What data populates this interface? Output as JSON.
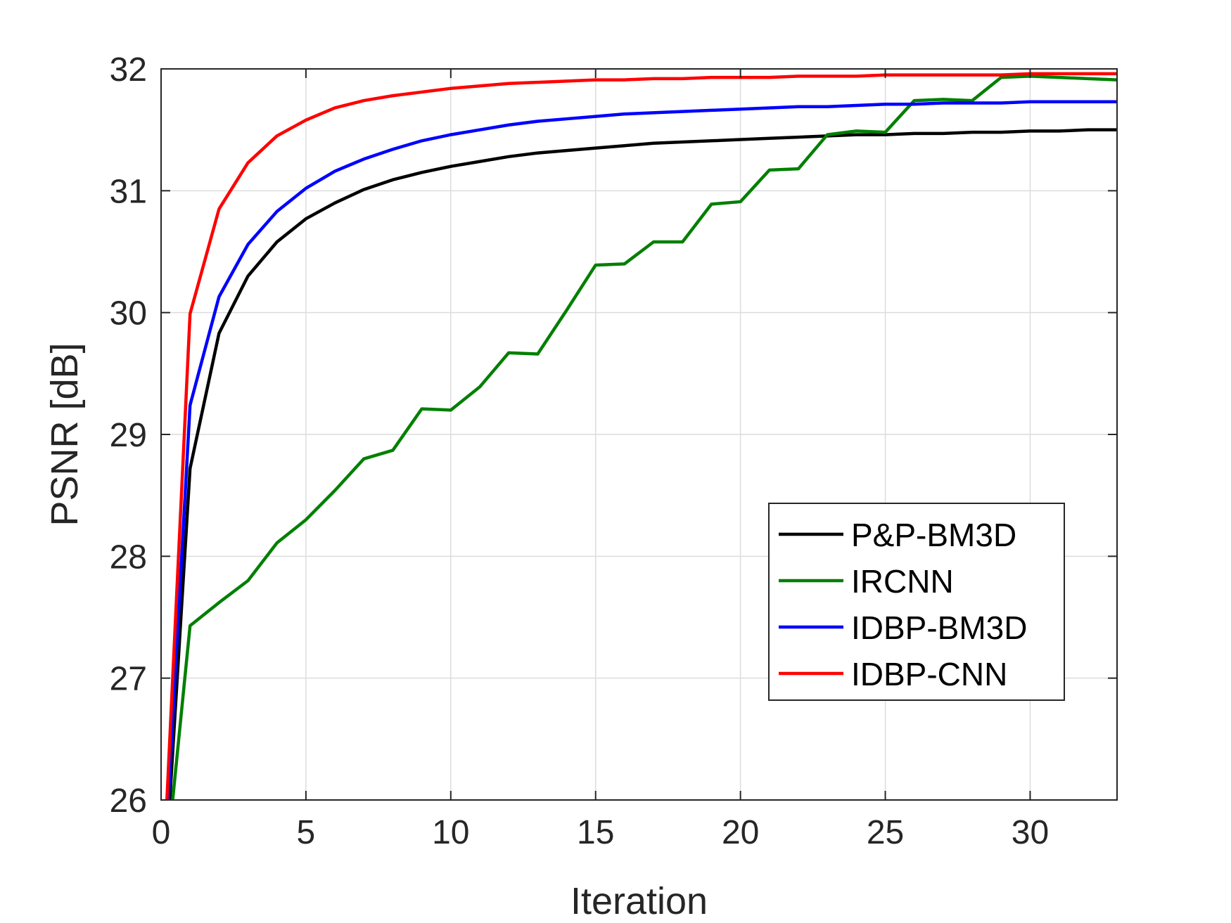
{
  "chart_data": {
    "type": "line",
    "title": "",
    "xlabel": "Iteration",
    "ylabel": "PSNR [dB]",
    "xlim": [
      0,
      33
    ],
    "ylim": [
      26,
      32
    ],
    "xticks": [
      0,
      5,
      10,
      15,
      20,
      25,
      30
    ],
    "yticks": [
      26,
      27,
      28,
      29,
      30,
      31,
      32
    ],
    "grid": true,
    "legend_position": "right-center",
    "series": [
      {
        "name": "P&P-BM3D",
        "color": "#000000",
        "x": [
          0.3,
          1,
          2,
          3,
          4,
          5,
          6,
          7,
          8,
          9,
          10,
          11,
          12,
          13,
          14,
          15,
          16,
          17,
          18,
          19,
          20,
          21,
          22,
          23,
          24,
          25,
          26,
          27,
          28,
          29,
          30,
          31,
          32,
          33
        ],
        "y": [
          26.0,
          28.72,
          29.83,
          30.3,
          30.58,
          30.77,
          30.9,
          31.01,
          31.09,
          31.15,
          31.2,
          31.24,
          31.28,
          31.31,
          31.33,
          31.35,
          31.37,
          31.39,
          31.4,
          31.41,
          31.42,
          31.43,
          31.44,
          31.45,
          31.46,
          31.46,
          31.47,
          31.47,
          31.48,
          31.48,
          31.49,
          31.49,
          31.5,
          31.5
        ]
      },
      {
        "name": "IRCNN",
        "color": "#007f00",
        "x": [
          0.4,
          1,
          2,
          3,
          4,
          5,
          6,
          7,
          8,
          9,
          10,
          11,
          12,
          13,
          14,
          15,
          16,
          17,
          18,
          19,
          20,
          21,
          22,
          23,
          24,
          25,
          26,
          27,
          28,
          29,
          30,
          31,
          32,
          33
        ],
        "y": [
          26.0,
          27.43,
          27.62,
          27.8,
          28.11,
          28.3,
          28.54,
          28.8,
          28.87,
          29.21,
          29.2,
          29.39,
          29.67,
          29.66,
          30.02,
          30.39,
          30.4,
          30.58,
          30.58,
          30.89,
          30.91,
          31.17,
          31.18,
          31.46,
          31.49,
          31.48,
          31.74,
          31.75,
          31.74,
          31.93,
          31.94,
          31.93,
          31.92,
          31.91
        ]
      },
      {
        "name": "IDBP-BM3D",
        "color": "#0000ff",
        "x": [
          0.25,
          1,
          2,
          3,
          4,
          5,
          6,
          7,
          8,
          9,
          10,
          11,
          12,
          13,
          14,
          15,
          16,
          17,
          18,
          19,
          20,
          21,
          22,
          23,
          24,
          25,
          26,
          27,
          28,
          29,
          30,
          31,
          32,
          33
        ],
        "y": [
          26.0,
          29.24,
          30.13,
          30.56,
          30.83,
          31.02,
          31.16,
          31.26,
          31.34,
          31.41,
          31.46,
          31.5,
          31.54,
          31.57,
          31.59,
          31.61,
          31.63,
          31.64,
          31.65,
          31.66,
          31.67,
          31.68,
          31.69,
          31.69,
          31.7,
          31.71,
          31.71,
          31.72,
          31.72,
          31.72,
          31.73,
          31.73,
          31.73,
          31.73
        ]
      },
      {
        "name": "IDBP-CNN",
        "color": "#ff0000",
        "x": [
          0.2,
          1,
          2,
          3,
          4,
          5,
          6,
          7,
          8,
          9,
          10,
          11,
          12,
          13,
          14,
          15,
          16,
          17,
          18,
          19,
          20,
          21,
          22,
          23,
          24,
          25,
          26,
          27,
          28,
          29,
          30,
          31,
          32,
          33
        ],
        "y": [
          26.0,
          29.99,
          30.85,
          31.23,
          31.45,
          31.58,
          31.68,
          31.74,
          31.78,
          31.81,
          31.84,
          31.86,
          31.88,
          31.89,
          31.9,
          31.91,
          31.91,
          31.92,
          31.92,
          31.93,
          31.93,
          31.93,
          31.94,
          31.94,
          31.94,
          31.95,
          31.95,
          31.95,
          31.95,
          31.95,
          31.96,
          31.96,
          31.96,
          31.96
        ]
      }
    ]
  }
}
